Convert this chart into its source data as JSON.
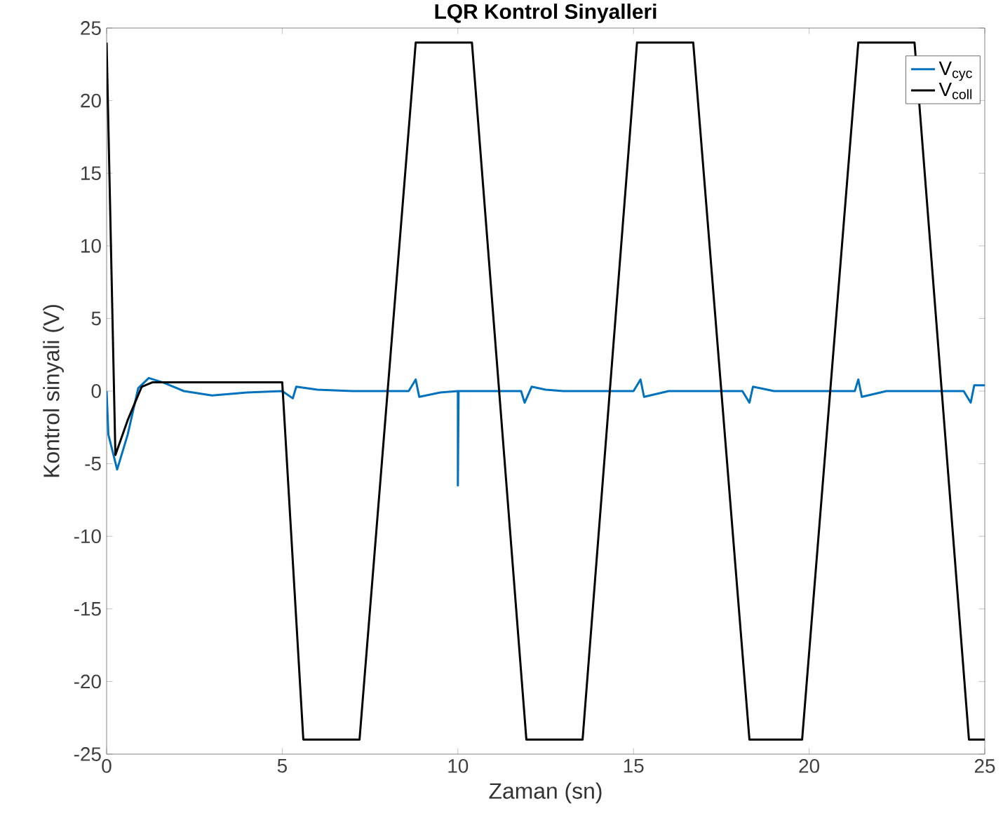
{
  "chart_data": {
    "type": "line",
    "title": "**LQR Kontrol Sinyalleri**",
    "xlabel": "Zaman (sn)",
    "ylabel": "Kontrol sinyali (V)",
    "xlim": [
      0,
      25
    ],
    "ylim": [
      -25,
      25
    ],
    "xticks": [
      0,
      5,
      10,
      15,
      20,
      25
    ],
    "yticks": [
      -25,
      -20,
      -15,
      -10,
      -5,
      0,
      5,
      10,
      15,
      20,
      25
    ],
    "legend": "top right",
    "grid": false,
    "marker": "none",
    "line_style": "solid",
    "series": [
      {
        "name": "V$_{cyc}$",
        "color": "#0072bd",
        "x": [
          0,
          0.05,
          0.3,
          0.6,
          0.9,
          1.2,
          1.6,
          2.2,
          3,
          4,
          5,
          5.3,
          5.4,
          6,
          7,
          8.6,
          8.8,
          8.9,
          9.5,
          10,
          10,
          10.02,
          11,
          11.8,
          11.9,
          12.1,
          12.5,
          13,
          15,
          15.2,
          15.3,
          16,
          18.1,
          18.3,
          18.4,
          19,
          21.3,
          21.4,
          21.5,
          22.2,
          24.4,
          24.6,
          24.7,
          25
        ],
        "values": [
          0,
          -3,
          -5.4,
          -3,
          0.2,
          0.9,
          0.6,
          0,
          -0.3,
          -0.1,
          0,
          -0.5,
          0.3,
          0.1,
          0,
          0,
          0.8,
          -0.4,
          -0.1,
          0,
          -6.5,
          0,
          0,
          0,
          -0.8,
          0.3,
          0.1,
          0,
          0,
          0.8,
          -0.4,
          0,
          0,
          -0.8,
          0.3,
          0,
          0,
          0.8,
          -0.4,
          0,
          0,
          -0.8,
          0.4,
          0.4
        ]
      },
      {
        "name": "V$_{coll}$",
        "color": "#000000",
        "x": [
          0,
          0.25,
          0.6,
          1,
          1.3,
          5,
          5.6,
          7.2,
          8.8,
          10.4,
          11.95,
          13.55,
          15.1,
          16.7,
          18.3,
          19.8,
          21.4,
          23,
          24.55,
          25
        ],
        "values": [
          24,
          -4.4,
          -2,
          0.3,
          0.6,
          0.6,
          -24,
          -24,
          24,
          24,
          -24,
          -24,
          24,
          24,
          -24,
          -24,
          24,
          24,
          -24,
          -24
        ]
      }
    ]
  }
}
